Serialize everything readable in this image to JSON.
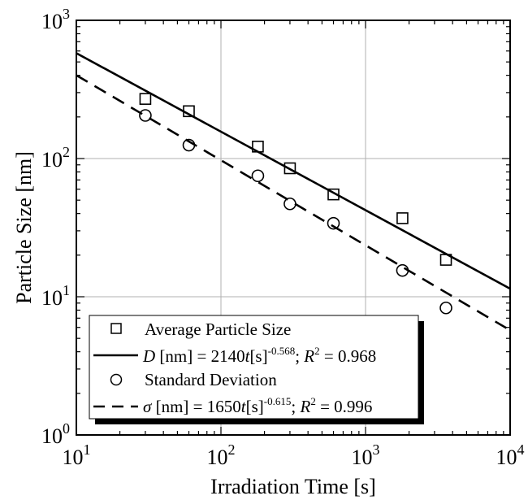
{
  "chart_data": {
    "type": "scatter",
    "xscale": "log",
    "yscale": "log",
    "xlim": [
      10,
      10000
    ],
    "ylim": [
      1,
      1000
    ],
    "grid": true,
    "xlabel": "Irradiation Time [s]",
    "ylabel": "Particle Size [nm]",
    "x_ticks": [
      {
        "base": "10",
        "exp": "1",
        "value": 10
      },
      {
        "base": "10",
        "exp": "2",
        "value": 100
      },
      {
        "base": "10",
        "exp": "3",
        "value": 1000
      },
      {
        "base": "10",
        "exp": "4",
        "value": 10000
      }
    ],
    "y_ticks": [
      {
        "base": "10",
        "exp": "0",
        "value": 1
      },
      {
        "base": "10",
        "exp": "1",
        "value": 10
      },
      {
        "base": "10",
        "exp": "2",
        "value": 100
      },
      {
        "base": "10",
        "exp": "3",
        "value": 1000
      }
    ],
    "series": [
      {
        "name": "Average Particle Size",
        "marker": "square",
        "x": [
          30,
          60,
          180,
          300,
          600,
          1800,
          3600
        ],
        "y": [
          270,
          220,
          122,
          85,
          55,
          37,
          18.5
        ]
      },
      {
        "name": "Standard Deviation",
        "marker": "circle",
        "x": [
          30,
          60,
          180,
          300,
          600,
          1800,
          3600
        ],
        "y": [
          205,
          125,
          75,
          47,
          34,
          15.5,
          8.3
        ]
      }
    ],
    "fits": [
      {
        "a": 2140,
        "b": -0.568,
        "style": "solid"
      },
      {
        "a": 1650,
        "b": -0.615,
        "style": "dashed"
      }
    ],
    "legend": {
      "position": "bottom-left",
      "entries": [
        {
          "type": "marker",
          "marker": "square",
          "text": "Average Particle Size"
        },
        {
          "type": "line",
          "style": "solid",
          "sym": "D",
          "mid": " [nm] = 2140",
          "t": "t",
          "s": "[s]",
          "exp": "-0.568",
          "sep": "; ",
          "R": "R",
          "r_exp": "2",
          "rval": " = 0.968"
        },
        {
          "type": "marker",
          "marker": "circle",
          "text": "Standard Deviation"
        },
        {
          "type": "line",
          "style": "dashed",
          "sym": "σ",
          "mid": " [nm] = 1650",
          "t": "t",
          "s": "[s]",
          "exp": "-0.615",
          "sep": "; ",
          "R": "R",
          "r_exp": "2",
          "rval": " = 0.996"
        }
      ]
    }
  }
}
